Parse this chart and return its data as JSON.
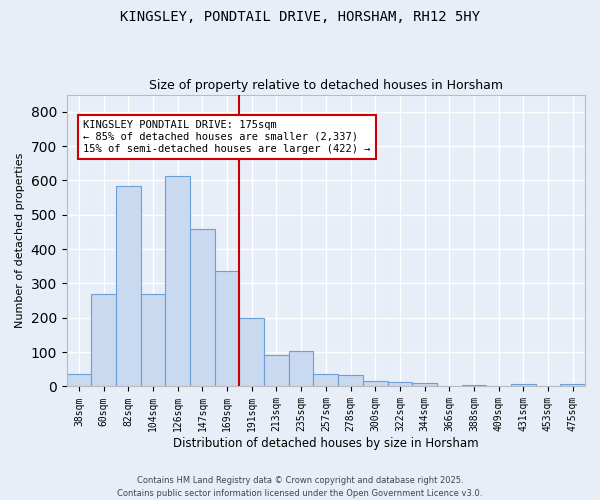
{
  "title": "KINGSLEY, PONDTAIL DRIVE, HORSHAM, RH12 5HY",
  "subtitle": "Size of property relative to detached houses in Horsham",
  "xlabel": "Distribution of detached houses by size in Horsham",
  "ylabel": "Number of detached properties",
  "bar_color": "#c9d9f0",
  "bar_edge_color": "#6a9fd8",
  "background_color": "#e8eef8",
  "grid_color": "white",
  "vline_color": "#cc0000",
  "annotation_text": "KINGSLEY PONDTAIL DRIVE: 175sqm\n← 85% of detached houses are smaller (2,337)\n15% of semi-detached houses are larger (422) →",
  "annotation_box_color": "white",
  "annotation_box_edge": "#cc0000",
  "categories": [
    "38sqm",
    "60sqm",
    "82sqm",
    "104sqm",
    "126sqm",
    "147sqm",
    "169sqm",
    "191sqm",
    "213sqm",
    "235sqm",
    "257sqm",
    "278sqm",
    "300sqm",
    "322sqm",
    "344sqm",
    "366sqm",
    "388sqm",
    "409sqm",
    "431sqm",
    "453sqm",
    "475sqm"
  ],
  "values": [
    35,
    268,
    585,
    270,
    612,
    458,
    335,
    200,
    93,
    103,
    37,
    33,
    16,
    14,
    10,
    0,
    5,
    0,
    7,
    0,
    7
  ],
  "ylim": [
    0,
    850
  ],
  "yticks": [
    0,
    100,
    200,
    300,
    400,
    500,
    600,
    700,
    800
  ],
  "figsize": [
    6.0,
    5.0
  ],
  "dpi": 100,
  "vline_bar_index": 6,
  "footer_line1": "Contains HM Land Registry data © Crown copyright and database right 2025.",
  "footer_line2": "Contains public sector information licensed under the Open Government Licence v3.0."
}
